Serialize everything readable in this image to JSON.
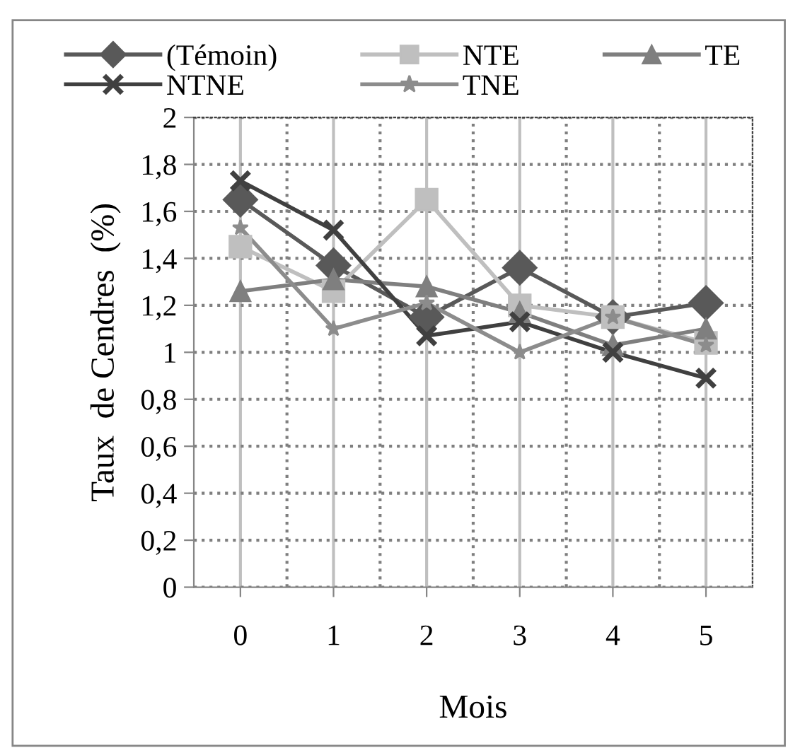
{
  "chart_data": {
    "type": "line",
    "xlabel": "Mois",
    "ylabel": "Taux  de Cendres  (%)",
    "categories": [
      "0",
      "1",
      "2",
      "3",
      "4",
      "5"
    ],
    "series": [
      {
        "name": "(Témoin)",
        "color": "#595959",
        "marker": "diamond",
        "values": [
          1.65,
          1.37,
          1.15,
          1.36,
          1.15,
          1.21
        ]
      },
      {
        "name": "NTE",
        "color": "#bfbfbf",
        "marker": "square",
        "values": [
          1.45,
          1.26,
          1.65,
          1.2,
          1.15,
          1.04
        ]
      },
      {
        "name": "TE",
        "color": "#7f7f7f",
        "marker": "triangle",
        "values": [
          1.26,
          1.31,
          1.28,
          1.17,
          1.03,
          1.1
        ]
      },
      {
        "name": "NTNE",
        "color": "#404040",
        "marker": "cross",
        "values": [
          1.73,
          1.52,
          1.07,
          1.13,
          1.0,
          0.89
        ]
      },
      {
        "name": "TNE",
        "color": "#8c8c8c",
        "marker": "star",
        "values": [
          1.53,
          1.1,
          1.21,
          1.0,
          1.15,
          1.03
        ]
      }
    ],
    "ylim": [
      0,
      2
    ],
    "yticks": [
      0,
      {
        "value": 0.2,
        "label": "0,2"
      },
      {
        "value": 0.4,
        "label": "0,4"
      },
      {
        "value": 0.6,
        "label": "0,6"
      },
      {
        "value": 0.8,
        "label": "0,8"
      },
      1,
      {
        "value": 1.2,
        "label": "1,2"
      },
      {
        "value": 1.4,
        "label": "1,4"
      },
      {
        "value": 1.6,
        "label": "1,6"
      },
      {
        "value": 1.8,
        "label": "1,8"
      },
      2
    ],
    "grid": true,
    "legend": "top",
    "line_style": "solid"
  }
}
